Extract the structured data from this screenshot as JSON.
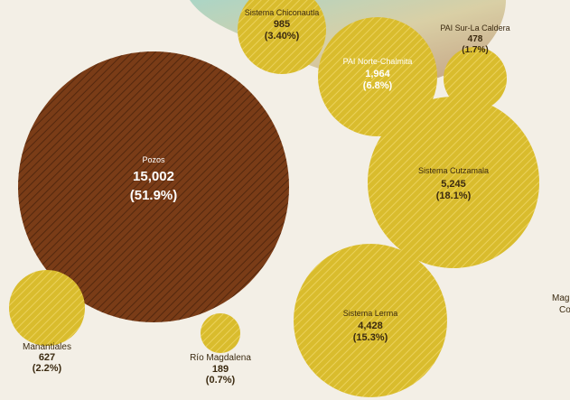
{
  "chart_data": {
    "type": "bubble",
    "title": "",
    "bubbles": [
      {
        "label": "Pozos",
        "value": "15,002",
        "share": "(51.9%)",
        "num": 15002,
        "pct": 51.9,
        "color": "#7a3c17",
        "text_color": "#ffffff"
      },
      {
        "label": "Sistema Cutzamala",
        "value": "5,245",
        "share": "(18.1%)",
        "num": 5245,
        "pct": 18.1,
        "color": "#d9bc2d",
        "text_color": "#3b2a10"
      },
      {
        "label": "Sistema Lerma",
        "value": "4,428",
        "share": "(15.3%)",
        "num": 4428,
        "pct": 15.3,
        "color": "#d9bc2d",
        "text_color": "#3b2a10"
      },
      {
        "label": "PAI Norte-Chalmita",
        "value": "1,964",
        "share": "(6.8%)",
        "num": 1964,
        "pct": 6.8,
        "color": "#d9bc2d",
        "text_color": "#ffffff"
      },
      {
        "label": "Sistema Chiconautla",
        "value": "985",
        "share": "(3.40%)",
        "num": 985,
        "pct": 3.4,
        "color": "#d9bc2d",
        "text_color": "#3b2a10"
      },
      {
        "label": "Manantiales",
        "value": "627",
        "share": "(2.2%)",
        "num": 627,
        "pct": 2.2,
        "color": "#d9bc2d",
        "text_color": "#3b2a10"
      },
      {
        "label": "PAI Sur-La Caldera",
        "value": "478",
        "share": "(1.7%)",
        "num": 478,
        "pct": 1.7,
        "color": "#d9bc2d",
        "text_color": "#3b2a10"
      },
      {
        "label": "Río Magdalena",
        "value": "189",
        "share": "(0.7%)",
        "num": 189,
        "pct": 0.7,
        "color": "#d9bc2d",
        "text_color": "#3b2a10"
      }
    ],
    "cut_off_text": [
      "Mag",
      "Co"
    ]
  },
  "colors": {
    "background": "#f3efe6",
    "gold": "#d9bc2d",
    "brown": "#7a3c17",
    "hatch_light": "#efd666",
    "hatch_dark": "#4a230c",
    "label_dark": "#3b2a10"
  }
}
